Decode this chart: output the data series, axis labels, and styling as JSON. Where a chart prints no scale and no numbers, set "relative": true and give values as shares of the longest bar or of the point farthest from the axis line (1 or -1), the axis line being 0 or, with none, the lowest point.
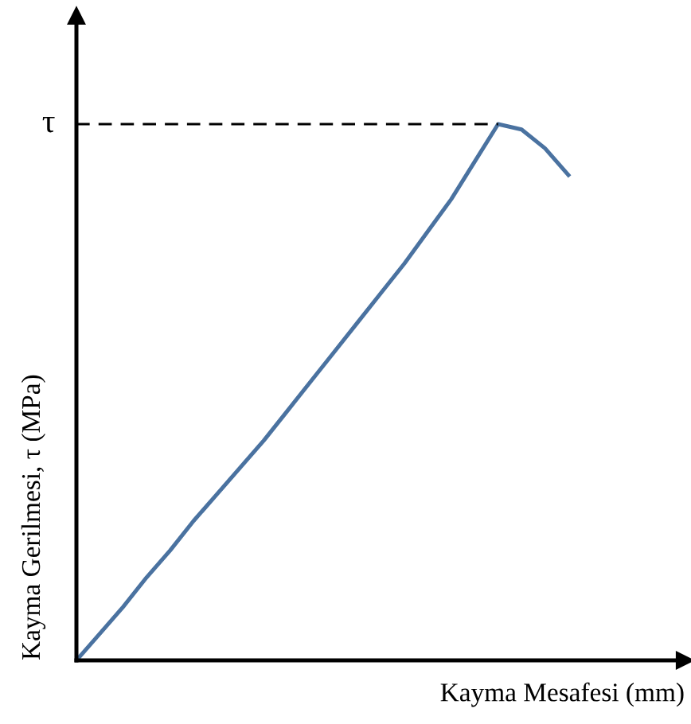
{
  "chart_data": {
    "type": "line",
    "relative": true,
    "xlabel": "Kayma Mesafesi (mm)",
    "ylabel": "Kayma Gerilmesi, τ (MPa)",
    "categories": [
      null,
      null,
      null,
      null,
      null,
      null,
      null,
      null,
      null,
      null,
      null,
      null,
      null,
      null,
      null,
      null,
      null,
      null,
      null,
      null,
      null,
      null
    ],
    "series": [
      {
        "color": "#4a72a0",
        "values": [
          0,
          0.05,
          0.1,
          0.155,
          0.205,
          0.26,
          0.31,
          0.36,
          0.41,
          0.465,
          0.52,
          0.575,
          0.63,
          0.685,
          0.74,
          0.8,
          0.86,
          0.93,
          1,
          0.99,
          0.955,
          0.905
        ]
      }
    ],
    "ref_lines": [
      {
        "axis": "y",
        "value": 1,
        "label": "τ",
        "color": "#000000",
        "line_style": "dashed"
      }
    ],
    "legend": false
  }
}
